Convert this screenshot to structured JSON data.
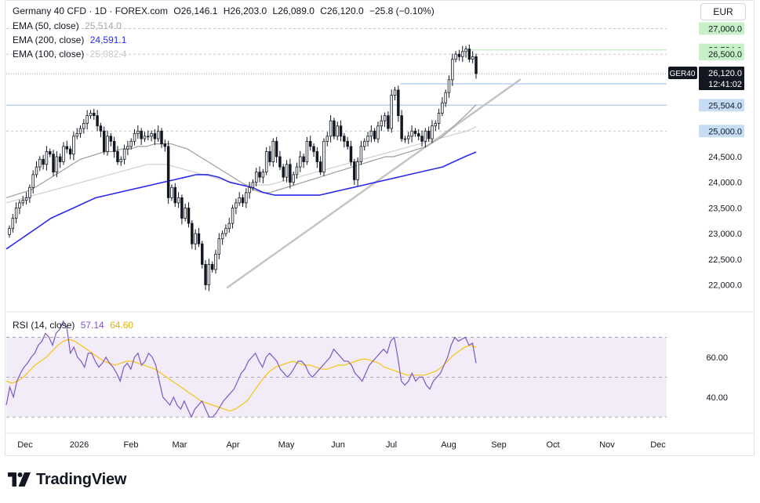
{
  "header": {
    "symbol_line": "Germany 40 CFD · 1D · FOREX.com",
    "ohlc": {
      "o": "O26,146.1",
      "h": "H26,203.0",
      "l": "L26,089.0",
      "c": "C26,120.0",
      "chg": "−25.8 (−0.10%)"
    },
    "currency": "EUR"
  },
  "indicators": [
    {
      "label": "EMA (50, close)",
      "value": "25,514.0",
      "color": "#9e9e9e"
    },
    {
      "label": "EMA (200, close)",
      "value": "24,591.1",
      "color": "#2b2be8"
    },
    {
      "label": "EMA (100, close)",
      "value": "25,082.4",
      "color": "#c8c8c8"
    }
  ],
  "rsi": {
    "label": "RSI (14, close)",
    "value": "57.14",
    "ma_value": "64.60",
    "color": "#7e57c2",
    "ma_color": "#f5c518"
  },
  "brand": "TradingView",
  "chart_data": [
    {
      "type": "candlestick",
      "title": "Germany 40 CFD · 1D · FOREX.com",
      "ylim": [
        21750,
        27250
      ],
      "y_ticks": [
        "27,000.0",
        "26,500.0",
        "25,000.0",
        "24,500.0",
        "24,000.0",
        "23,500.0",
        "23,000.0",
        "22,500.0",
        "22,000.0"
      ],
      "x_ticks": [
        "Dec",
        "2026",
        "Feb",
        "Mar",
        "Apr",
        "May",
        "Jun",
        "Jul",
        "Aug",
        "Sep",
        "Oct",
        "Nov",
        "Dec"
      ],
      "levels": [
        {
          "value": 26584.1,
          "label": "26,584.1",
          "color": "#c8f0c8",
          "style": "green"
        },
        {
          "value": 25919.9,
          "label": "25,919.9",
          "color": "#c6ddf5",
          "style": "blue"
        },
        {
          "value": 25504.0,
          "label": "25,504.0",
          "color": "#c6ddf5",
          "style": "blue"
        },
        {
          "value": 27000.0,
          "label": "27,000.0",
          "color": "#c8f0c8",
          "style": "green"
        },
        {
          "value": 26500.0,
          "label": "26,500.0",
          "color": "#c8f0c8",
          "style": "green"
        },
        {
          "value": 25000.0,
          "label": "25,000.0",
          "color": "#c6ddf5",
          "style": "blue"
        }
      ],
      "last_price": {
        "symbol": "GER40",
        "value": "26,120.0",
        "countdown": "12:41:02"
      },
      "trendline": {
        "from": [
          "Mar",
          21950
        ],
        "to": [
          "Sep",
          26000
        ]
      },
      "closes": [
        23100,
        23300,
        23500,
        23600,
        23650,
        23700,
        23900,
        24150,
        24300,
        24450,
        24350,
        24600,
        24550,
        24200,
        24500,
        24400,
        24700,
        24650,
        24550,
        24900,
        24950,
        25050,
        25150,
        25300,
        25350,
        25300,
        25100,
        25000,
        24600,
        24900,
        24800,
        24600,
        24400,
        24450,
        24650,
        24700,
        24800,
        24950,
        25000,
        24850,
        24900,
        24900,
        24950,
        24850,
        25000,
        24750,
        24700,
        23700,
        23900,
        23600,
        23700,
        23300,
        23500,
        23200,
        22800,
        23000,
        22800,
        22400,
        22000,
        22400,
        22300,
        22600,
        22900,
        23000,
        23100,
        23200,
        23500,
        23600,
        23700,
        23600,
        23800,
        23900,
        24000,
        24200,
        24100,
        24200,
        24600,
        24400,
        24800,
        24500,
        24300,
        24100,
        24350,
        24000,
        24150,
        24300,
        24500,
        24400,
        24800,
        24700,
        24600,
        24400,
        24200,
        24800,
        24900,
        25200,
        24900,
        25100,
        24900,
        24800,
        24700,
        24400,
        24050,
        24400,
        24700,
        24800,
        24900,
        25000,
        24850,
        25100,
        25200,
        25300,
        25050,
        25700,
        25800,
        25300,
        24850,
        24850,
        24900,
        25000,
        24950,
        24900,
        24800,
        25000,
        24850,
        25100,
        25150,
        25350,
        25550,
        25750,
        26000,
        26400,
        26500,
        26450,
        26550,
        26600,
        26400,
        26450,
        26120
      ],
      "series": [
        {
          "name": "EMA (50, close)",
          "values": [
            23700,
            23750,
            23800,
            23850,
            23950,
            24050,
            24150,
            24250,
            24350,
            24450,
            24500,
            24550,
            24600,
            24600,
            24650,
            24650,
            24700,
            24700,
            24750,
            24750,
            24750,
            24700,
            24650,
            24550,
            24450,
            24350,
            24250,
            24150,
            24050,
            23950,
            23850,
            23800,
            23800,
            23850,
            23900,
            23950,
            24000,
            24050,
            24100,
            24150,
            24200,
            24250,
            24300,
            24350,
            24400,
            24450,
            24500,
            24500,
            24550,
            24600,
            24650,
            24700,
            24800,
            24900,
            25050,
            25200,
            25350,
            25514
          ]
        },
        {
          "name": "EMA (100, close)",
          "values": [
            23600,
            23650,
            23700,
            23750,
            23800,
            23850,
            23900,
            23950,
            24000,
            24050,
            24100,
            24150,
            24200,
            24250,
            24300,
            24350,
            24350,
            24350,
            24300,
            24250,
            24200,
            24150,
            24100,
            24050,
            24000,
            23950,
            23950,
            23950,
            23950,
            24000,
            24050,
            24100,
            24150,
            24200,
            24250,
            24300,
            24350,
            24400,
            24450,
            24500,
            24550,
            24600,
            24650,
            24700,
            24750,
            24800,
            24850,
            24900,
            24950,
            25000,
            25082
          ]
        },
        {
          "name": "EMA (200, close)",
          "values": [
            22700,
            22850,
            23000,
            23150,
            23300,
            23400,
            23500,
            23600,
            23700,
            23750,
            23800,
            23850,
            23900,
            23950,
            24000,
            24050,
            24100,
            24150,
            24150,
            24100,
            24000,
            23950,
            23900,
            23800,
            23750,
            23750,
            23750,
            23750,
            23750,
            23800,
            23850,
            23900,
            23950,
            24000,
            24050,
            24100,
            24150,
            24200,
            24250,
            24300,
            24400,
            24500,
            24591
          ]
        }
      ]
    },
    {
      "type": "line",
      "title": "RSI (14, close)",
      "ylim": [
        25,
        80
      ],
      "y_ticks": [
        "60.00",
        "40.00"
      ],
      "bands": [
        70,
        50,
        30
      ],
      "series": [
        {
          "name": "RSI (14, close)",
          "values": [
            36,
            45,
            40,
            48,
            52,
            55,
            57,
            60,
            62,
            66,
            68,
            72,
            70,
            66,
            72,
            74,
            78,
            75,
            62,
            65,
            60,
            58,
            55,
            62,
            62,
            58,
            55,
            57,
            60,
            57,
            55,
            52,
            48,
            55,
            57,
            54,
            60,
            62,
            56,
            58,
            62,
            60,
            56,
            48,
            40,
            38,
            36,
            40,
            36,
            34,
            38,
            34,
            30,
            34,
            36,
            38,
            34,
            30,
            30,
            32,
            35,
            38,
            40,
            42,
            44,
            48,
            52,
            54,
            58,
            60,
            62,
            58,
            55,
            60,
            62,
            60,
            58,
            54,
            52,
            50,
            52,
            55,
            58,
            58,
            56,
            52,
            50,
            52,
            54,
            56,
            58,
            60,
            64,
            62,
            60,
            58,
            58,
            56,
            52,
            50,
            48,
            52,
            56,
            58,
            60,
            62,
            64,
            62,
            68,
            70,
            60,
            48,
            46,
            48,
            52,
            48,
            50,
            50,
            46,
            44,
            48,
            50,
            52,
            56,
            60,
            66,
            70,
            68,
            69,
            70,
            66,
            67,
            57
          ]
        },
        {
          "name": "RSI-based MA",
          "values": [
            48,
            47,
            48,
            50,
            53,
            56,
            58,
            60,
            63,
            66,
            68,
            69,
            68,
            66,
            64,
            62,
            60,
            58,
            57,
            56,
            57,
            58,
            58,
            57,
            56,
            55,
            54,
            52,
            50,
            48,
            46,
            44,
            42,
            40,
            38,
            37,
            36,
            35,
            34,
            33,
            34,
            36,
            38,
            42,
            46,
            50,
            53,
            55,
            56,
            57,
            58,
            57,
            56,
            56,
            55,
            54,
            54,
            55,
            56,
            56,
            57,
            58,
            59,
            59,
            58,
            57,
            55,
            54,
            53,
            52,
            51,
            51,
            51,
            51,
            52,
            53,
            55,
            58,
            61,
            63,
            65,
            66,
            65
          ]
        }
      ]
    }
  ]
}
